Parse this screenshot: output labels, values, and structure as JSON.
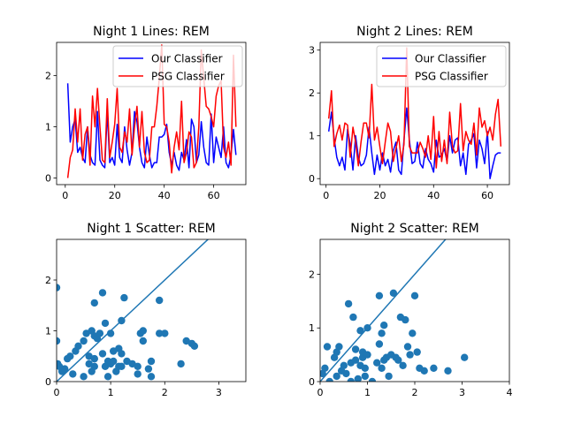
{
  "colors": {
    "our_classifier": "#0000ff",
    "psg_classifier": "#ff0000",
    "scatter": "#1f77b4",
    "axes": "#000000",
    "legend_border": "#cccccc"
  },
  "chart_data": [
    {
      "type": "line",
      "title": "Night 1 Lines: REM",
      "xlabel": "",
      "ylabel": "",
      "xlim": [
        -3.5,
        73
      ],
      "ylim": [
        -0.13,
        2.65
      ],
      "xticks": [
        0,
        20,
        40,
        60
      ],
      "yticks": [
        0,
        1,
        2
      ],
      "legend_position": "upper right",
      "grid": false,
      "series": [
        {
          "name": "Our Classifier",
          "color": "#0000ff",
          "x": [
            1,
            2,
            3,
            4,
            5,
            6,
            7,
            8,
            9,
            10,
            11,
            12,
            13,
            14,
            15,
            16,
            17,
            18,
            19,
            20,
            21,
            22,
            23,
            24,
            25,
            26,
            27,
            28,
            29,
            30,
            31,
            32,
            33,
            34,
            35,
            36,
            37,
            38,
            39,
            40,
            41,
            42,
            43,
            44,
            45,
            46,
            47,
            48,
            49,
            50,
            51,
            52,
            53,
            54,
            55,
            56,
            57,
            58,
            59,
            60,
            61,
            62,
            63,
            64,
            65,
            66,
            67,
            68,
            69
          ],
          "values": [
            1.85,
            0.7,
            1.0,
            1.15,
            0.5,
            0.6,
            0.4,
            0.3,
            1.0,
            0.45,
            0.3,
            0.25,
            1.3,
            0.35,
            0.25,
            0.2,
            1.3,
            0.3,
            0.4,
            0.25,
            1.05,
            0.4,
            0.3,
            1.0,
            0.55,
            0.25,
            0.5,
            1.3,
            1.1,
            0.6,
            0.3,
            0.2,
            0.8,
            0.45,
            0.2,
            0.3,
            0.3,
            0.8,
            0.8,
            0.85,
            1.05,
            0.5,
            0.25,
            0.5,
            0.25,
            0.15,
            0.5,
            0.35,
            0.75,
            0.2,
            1.15,
            1.0,
            0.3,
            0.45,
            1.1,
            0.6,
            0.3,
            0.25,
            1.25,
            0.3,
            0.8,
            0.6,
            0.4,
            1.0,
            0.3,
            0.2,
            0.45,
            0.95,
            0.45
          ]
        },
        {
          "name": "PSG Classifier",
          "color": "#ff0000",
          "x": [
            1,
            2,
            3,
            4,
            5,
            6,
            7,
            8,
            9,
            10,
            11,
            12,
            13,
            14,
            15,
            16,
            17,
            18,
            19,
            20,
            21,
            22,
            23,
            24,
            25,
            26,
            27,
            28,
            29,
            30,
            31,
            32,
            33,
            34,
            35,
            36,
            37,
            38,
            39,
            40,
            41,
            42,
            43,
            44,
            45,
            46,
            47,
            48,
            49,
            50,
            51,
            52,
            53,
            54,
            55,
            56,
            57,
            58,
            59,
            60,
            61,
            62,
            63,
            64,
            65,
            66,
            67,
            68,
            69
          ],
          "values": [
            0.0,
            0.4,
            0.55,
            1.35,
            0.7,
            1.35,
            0.35,
            0.85,
            1.0,
            0.25,
            1.6,
            1.0,
            1.75,
            1.0,
            0.35,
            0.3,
            1.55,
            0.4,
            0.7,
            1.05,
            1.75,
            0.6,
            0.5,
            0.9,
            0.7,
            1.35,
            0.45,
            1.0,
            1.4,
            0.6,
            1.3,
            0.5,
            0.3,
            0.35,
            1.0,
            1.0,
            1.4,
            1.95,
            2.6,
            1.05,
            1.0,
            0.7,
            0.1,
            0.6,
            0.9,
            0.55,
            1.5,
            0.3,
            0.5,
            0.9,
            0.8,
            0.2,
            0.3,
            1.0,
            2.5,
            1.95,
            1.4,
            1.35,
            1.2,
            1.0,
            1.6,
            1.8,
            1.9,
            0.6,
            0.4,
            0.7,
            0.25,
            2.4,
            1.0
          ]
        }
      ]
    },
    {
      "type": "line",
      "title": "Night 2 Lines: REM",
      "xlabel": "",
      "ylabel": "",
      "xlim": [
        -2.2,
        68.2
      ],
      "ylim": [
        -0.14,
        3.18
      ],
      "xticks": [
        0,
        20,
        40,
        60
      ],
      "yticks": [
        0,
        1,
        2,
        3
      ],
      "legend_position": "upper right",
      "grid": false,
      "series": [
        {
          "name": "Our Classifier",
          "color": "#0000ff",
          "x": [
            1,
            2,
            3,
            4,
            5,
            6,
            7,
            8,
            9,
            10,
            11,
            12,
            13,
            14,
            15,
            16,
            17,
            18,
            19,
            20,
            21,
            22,
            23,
            24,
            25,
            26,
            27,
            28,
            29,
            30,
            31,
            32,
            33,
            34,
            35,
            36,
            37,
            38,
            39,
            40,
            41,
            42,
            43,
            44,
            45,
            46,
            47,
            48,
            49,
            50,
            51,
            52,
            53,
            54,
            55,
            56,
            57,
            58,
            59,
            60,
            61,
            62,
            63,
            64,
            65
          ],
          "values": [
            1.1,
            1.55,
            0.95,
            0.5,
            0.3,
            0.5,
            0.2,
            1.15,
            0.8,
            0.2,
            1.0,
            0.5,
            0.3,
            0.35,
            0.55,
            1.2,
            0.6,
            0.1,
            0.55,
            0.2,
            0.6,
            0.3,
            0.45,
            0.15,
            0.65,
            0.85,
            0.2,
            0.1,
            0.9,
            1.65,
            0.9,
            0.35,
            0.4,
            0.85,
            0.35,
            0.25,
            0.7,
            0.45,
            0.35,
            0.15,
            0.9,
            0.5,
            0.55,
            0.7,
            0.4,
            1.0,
            0.6,
            0.9,
            0.95,
            0.3,
            0.6,
            0.1,
            0.8,
            0.9,
            1.05,
            0.25,
            0.9,
            0.7,
            0.35,
            1.1,
            0.0,
            0.3,
            0.55,
            0.6,
            0.6
          ]
        },
        {
          "name": "PSG Classifier",
          "color": "#ff0000",
          "x": [
            1,
            2,
            3,
            4,
            5,
            6,
            7,
            8,
            9,
            10,
            11,
            12,
            13,
            14,
            15,
            16,
            17,
            18,
            19,
            20,
            21,
            22,
            23,
            24,
            25,
            26,
            27,
            28,
            29,
            30,
            31,
            32,
            33,
            34,
            35,
            36,
            37,
            38,
            39,
            40,
            41,
            42,
            43,
            44,
            45,
            46,
            47,
            48,
            49,
            50,
            51,
            52,
            53,
            54,
            55,
            56,
            57,
            58,
            59,
            60,
            61,
            62,
            63,
            64,
            65
          ],
          "values": [
            1.4,
            2.05,
            0.75,
            1.05,
            1.25,
            0.9,
            1.3,
            1.25,
            0.5,
            1.2,
            0.85,
            0.3,
            0.85,
            1.3,
            1.3,
            0.95,
            2.2,
            0.9,
            1.2,
            0.75,
            0.35,
            0.85,
            1.3,
            1.1,
            0.4,
            0.7,
            1.0,
            0.4,
            0.8,
            3.05,
            0.75,
            0.6,
            0.6,
            0.6,
            0.85,
            0.7,
            0.5,
            1.0,
            0.45,
            1.45,
            0.25,
            1.1,
            0.4,
            0.9,
            0.35,
            1.55,
            0.75,
            0.6,
            0.65,
            1.75,
            0.65,
            1.1,
            0.9,
            0.8,
            1.3,
            0.55,
            1.65,
            1.2,
            1.35,
            1.0,
            1.2,
            0.9,
            1.5,
            1.85,
            0.75
          ]
        }
      ]
    },
    {
      "type": "scatter",
      "title": "Night 1 Scatter: REM",
      "xlabel": "",
      "ylabel": "",
      "xlim": [
        0,
        3.5
      ],
      "ylim": [
        0,
        2.8
      ],
      "xticks": [
        0,
        1,
        2,
        3
      ],
      "yticks": [
        0,
        1,
        2
      ],
      "grid": false,
      "reference_line": "y = x",
      "x": [
        0.0,
        0.0,
        0.02,
        0.05,
        0.1,
        0.15,
        0.2,
        0.25,
        0.3,
        0.35,
        0.4,
        0.5,
        0.5,
        0.55,
        0.6,
        0.6,
        0.65,
        0.65,
        0.7,
        0.7,
        0.7,
        0.7,
        0.75,
        0.8,
        0.85,
        0.85,
        0.9,
        0.9,
        0.95,
        0.95,
        1.0,
        1.0,
        1.05,
        1.05,
        1.1,
        1.15,
        1.15,
        1.2,
        1.2,
        1.2,
        1.25,
        1.3,
        1.4,
        1.5,
        1.5,
        1.55,
        1.6,
        1.6,
        1.7,
        1.75,
        1.75,
        1.9,
        1.9,
        2.0,
        2.3,
        2.4,
        2.5,
        2.55
      ],
      "y": [
        1.85,
        0.8,
        0.35,
        0.3,
        0.2,
        0.25,
        0.45,
        0.5,
        0.15,
        0.6,
        0.7,
        0.8,
        0.1,
        0.95,
        0.5,
        0.35,
        1.0,
        0.2,
        0.45,
        0.9,
        1.55,
        0.3,
        0.85,
        0.95,
        0.55,
        1.75,
        0.3,
        1.15,
        0.4,
        0.1,
        0.95,
        0.35,
        0.4,
        0.6,
        0.2,
        0.65,
        0.3,
        1.2,
        0.3,
        0.55,
        1.65,
        0.4,
        0.35,
        0.15,
        0.3,
        0.95,
        1.0,
        0.8,
        0.25,
        0.1,
        0.4,
        0.95,
        1.6,
        0.95,
        0.35,
        0.8,
        0.75,
        0.7
      ]
    },
    {
      "type": "scatter",
      "title": "Night 2 Scatter: REM",
      "xlabel": "",
      "ylabel": "",
      "xlim": [
        0,
        4
      ],
      "ylim": [
        0,
        2.65
      ],
      "xticks": [
        0,
        1,
        2,
        3,
        4
      ],
      "yticks": [
        0,
        1,
        2
      ],
      "grid": false,
      "reference_line": "y = x",
      "x": [
        0.05,
        0.1,
        0.15,
        0.2,
        0.3,
        0.35,
        0.35,
        0.4,
        0.45,
        0.5,
        0.55,
        0.6,
        0.65,
        0.65,
        0.7,
        0.75,
        0.75,
        0.8,
        0.85,
        0.85,
        0.9,
        0.9,
        0.95,
        0.95,
        1.0,
        1.0,
        1.1,
        1.2,
        1.25,
        1.25,
        1.3,
        1.3,
        1.35,
        1.35,
        1.4,
        1.45,
        1.5,
        1.55,
        1.6,
        1.65,
        1.7,
        1.75,
        1.8,
        1.85,
        1.9,
        1.95,
        2.0,
        2.05,
        2.1,
        2.2,
        2.4,
        2.7,
        3.05
      ],
      "y": [
        0.15,
        0.25,
        0.65,
        0.0,
        0.45,
        0.1,
        0.55,
        0.65,
        0.2,
        0.3,
        0.15,
        1.45,
        0.0,
        0.35,
        1.2,
        0.4,
        0.6,
        0.05,
        0.95,
        0.3,
        0.45,
        0.55,
        0.1,
        0.25,
        1.0,
        0.5,
        0.0,
        0.35,
        1.6,
        0.7,
        0.25,
        0.9,
        1.05,
        0.4,
        0.45,
        0.1,
        0.5,
        1.65,
        0.45,
        0.4,
        1.2,
        0.3,
        1.15,
        0.65,
        0.5,
        0.9,
        1.6,
        0.55,
        0.25,
        0.2,
        0.25,
        0.2,
        0.45
      ]
    }
  ]
}
